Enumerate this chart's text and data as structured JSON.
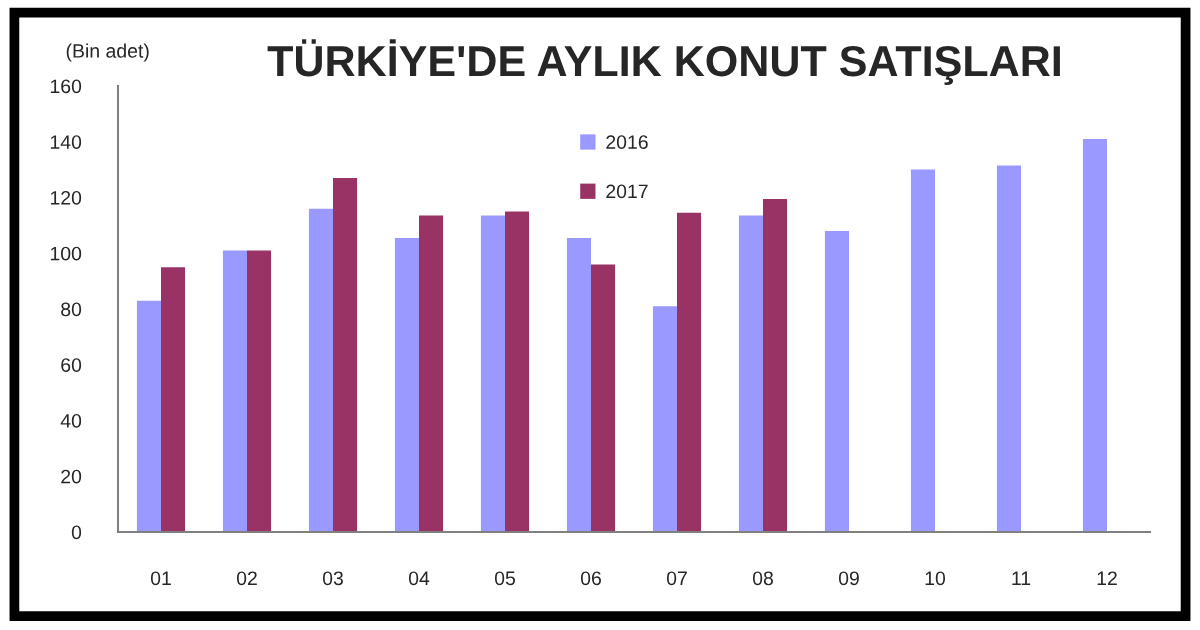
{
  "chart_data": {
    "type": "bar",
    "title": "TÜRKİYE'DE AYLIK KONUT SATIŞLARI",
    "ylabel": "(Bin adet)",
    "categories": [
      "01",
      "02",
      "03",
      "04",
      "05",
      "06",
      "07",
      "08",
      "09",
      "10",
      "11",
      "12"
    ],
    "series": [
      {
        "name": "2016",
        "color": "#9999ff",
        "values": [
          83,
          101,
          116,
          105.5,
          113.5,
          105.5,
          81,
          113.5,
          108,
          130,
          131.5,
          141
        ]
      },
      {
        "name": "2017",
        "color": "#993366",
        "values": [
          95,
          101,
          127,
          113.5,
          115,
          96,
          114.5,
          119.5,
          null,
          null,
          null,
          null
        ]
      }
    ],
    "ylim": [
      0,
      160
    ],
    "yticks": [
      0,
      20,
      40,
      60,
      80,
      100,
      120,
      140,
      160
    ],
    "grid": false,
    "legend": "top"
  }
}
